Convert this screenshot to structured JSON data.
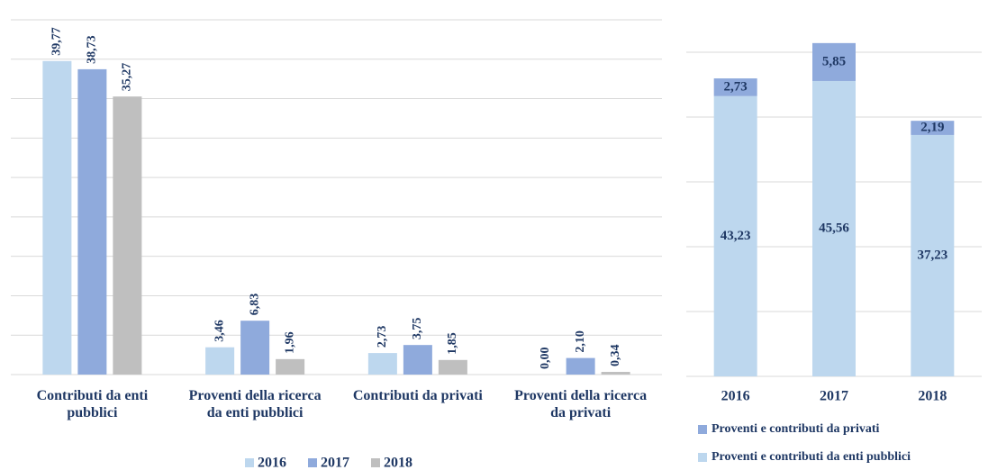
{
  "chart_data": [
    {
      "type": "bar",
      "categories": [
        "Contributi da enti pubblici",
        "Proventi della ricerca da enti pubblici",
        "Contributi da privati",
        "Proventi della ricerca da privati"
      ],
      "series": [
        {
          "name": "2016",
          "color": "#bdd7ee",
          "values": [
            39.77,
            3.46,
            2.73,
            0
          ],
          "value_labels": [
            "39,77",
            "3,46",
            "2,73",
            "0,00"
          ]
        },
        {
          "name": "2017",
          "color": "#8faadc",
          "values": [
            38.73,
            6.83,
            3.75,
            2.1
          ],
          "value_labels": [
            "38,73",
            "6,83",
            "3,75",
            "2,10"
          ]
        },
        {
          "name": "2018",
          "color": "#bfbfbf",
          "values": [
            35.27,
            1.96,
            1.85,
            0.34
          ],
          "value_labels": [
            "35,27",
            "1,96",
            "1,85",
            "0,34"
          ]
        }
      ],
      "ylim": [
        0,
        45
      ],
      "yticks": [
        0,
        5,
        10,
        15,
        20,
        25,
        30,
        35,
        40,
        45
      ],
      "grid": true,
      "legend": "bottom"
    },
    {
      "type": "stacked_bar",
      "categories": [
        "2016",
        "2017",
        "2018"
      ],
      "series": [
        {
          "name": "Proventi e contributi da enti pubblici",
          "color": "#bdd7ee",
          "values": [
            43.23,
            45.56,
            37.23
          ],
          "value_labels": [
            "43,23",
            "45,56",
            "37,23"
          ]
        },
        {
          "name": "Proventi e contributi da privati",
          "color": "#8faadc",
          "values": [
            2.73,
            5.85,
            2.19
          ],
          "value_labels": [
            "2,73",
            "5,85",
            "2,19"
          ]
        }
      ],
      "ylim": [
        0,
        50
      ],
      "yticks": [
        0,
        10,
        20,
        30,
        40,
        50
      ],
      "grid": true,
      "legend": "bottom"
    }
  ]
}
